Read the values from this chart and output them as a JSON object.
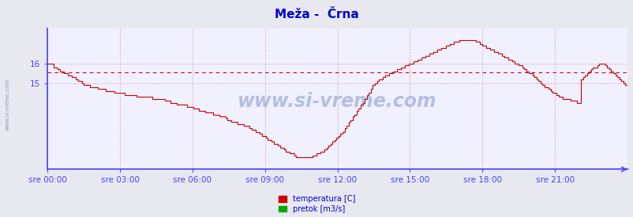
{
  "title": "Meža -  Črna",
  "title_color": "#0000cc",
  "title_fontsize": 11,
  "bg_color": "#e8e8f0",
  "plot_bg_color": "#f0f0ff",
  "x_labels": [
    "sre 00:00",
    "sre 03:00",
    "sre 06:00",
    "sre 09:00",
    "sre 12:00",
    "sre 15:00",
    "sre 18:00",
    "sre 21:00"
  ],
  "x_ticks_norm": [
    0.0,
    0.125,
    0.25,
    0.375,
    0.5,
    0.625,
    0.75,
    0.875
  ],
  "y_ticks": [
    15,
    16
  ],
  "y_min": 10.6,
  "y_max": 17.8,
  "avg_line_y": 15.55,
  "avg_line_color": "#dd0000",
  "grid_color": "#ddaaaa",
  "axis_color": "#4444ff",
  "watermark": "www.si-vreme.com",
  "watermark_color": "#4466aa",
  "watermark_alpha": 0.35,
  "legend_temp_color": "#cc0000",
  "legend_flow_color": "#00aa00",
  "temp_line_color": "#cc0000",
  "n_points": 288,
  "temperatura": [
    16.0,
    16.0,
    16.0,
    15.8,
    15.8,
    15.7,
    15.6,
    15.6,
    15.5,
    15.5,
    15.4,
    15.4,
    15.3,
    15.3,
    15.2,
    15.1,
    15.1,
    15.0,
    14.9,
    14.9,
    14.9,
    14.8,
    14.8,
    14.8,
    14.8,
    14.7,
    14.7,
    14.7,
    14.7,
    14.6,
    14.6,
    14.6,
    14.6,
    14.5,
    14.5,
    14.5,
    14.5,
    14.5,
    14.4,
    14.4,
    14.4,
    14.4,
    14.4,
    14.4,
    14.3,
    14.3,
    14.3,
    14.3,
    14.3,
    14.3,
    14.3,
    14.3,
    14.2,
    14.2,
    14.2,
    14.2,
    14.2,
    14.2,
    14.1,
    14.1,
    14.1,
    14.0,
    14.0,
    14.0,
    13.9,
    13.9,
    13.9,
    13.9,
    13.9,
    13.8,
    13.8,
    13.8,
    13.7,
    13.7,
    13.7,
    13.6,
    13.6,
    13.6,
    13.5,
    13.5,
    13.5,
    13.5,
    13.4,
    13.4,
    13.4,
    13.3,
    13.3,
    13.3,
    13.2,
    13.1,
    13.1,
    13.0,
    13.0,
    13.0,
    12.9,
    12.9,
    12.9,
    12.8,
    12.8,
    12.8,
    12.7,
    12.6,
    12.6,
    12.5,
    12.5,
    12.4,
    12.3,
    12.3,
    12.2,
    12.1,
    12.1,
    12.0,
    11.9,
    11.9,
    11.8,
    11.7,
    11.7,
    11.6,
    11.5,
    11.5,
    11.4,
    11.4,
    11.3,
    11.2,
    11.2,
    11.2,
    11.2,
    11.2,
    11.2,
    11.2,
    11.2,
    11.3,
    11.3,
    11.4,
    11.4,
    11.5,
    11.5,
    11.6,
    11.7,
    11.8,
    11.9,
    12.0,
    12.1,
    12.2,
    12.3,
    12.4,
    12.5,
    12.7,
    12.8,
    13.0,
    13.1,
    13.3,
    13.4,
    13.6,
    13.7,
    13.9,
    14.0,
    14.2,
    14.4,
    14.5,
    14.7,
    14.9,
    15.0,
    15.1,
    15.2,
    15.2,
    15.3,
    15.4,
    15.4,
    15.5,
    15.5,
    15.6,
    15.6,
    15.7,
    15.7,
    15.8,
    15.8,
    15.9,
    15.9,
    16.0,
    16.0,
    16.1,
    16.1,
    16.2,
    16.2,
    16.3,
    16.3,
    16.4,
    16.4,
    16.5,
    16.5,
    16.6,
    16.6,
    16.7,
    16.7,
    16.8,
    16.8,
    16.9,
    16.9,
    17.0,
    17.0,
    17.1,
    17.1,
    17.1,
    17.2,
    17.2,
    17.2,
    17.2,
    17.2,
    17.2,
    17.2,
    17.2,
    17.1,
    17.1,
    17.0,
    16.9,
    16.9,
    16.8,
    16.8,
    16.7,
    16.7,
    16.6,
    16.6,
    16.5,
    16.5,
    16.4,
    16.3,
    16.3,
    16.2,
    16.2,
    16.1,
    16.0,
    16.0,
    15.9,
    15.9,
    15.8,
    15.7,
    15.6,
    15.5,
    15.5,
    15.4,
    15.3,
    15.2,
    15.1,
    15.0,
    14.9,
    14.8,
    14.8,
    14.7,
    14.6,
    14.5,
    14.5,
    14.4,
    14.3,
    14.3,
    14.2,
    14.2,
    14.2,
    14.2,
    14.1,
    14.1,
    14.1,
    14.0,
    14.0,
    15.2,
    15.3,
    15.4,
    15.5,
    15.6,
    15.7,
    15.8,
    15.8,
    15.9,
    16.0,
    16.0,
    16.0,
    15.9,
    15.8,
    15.7,
    15.6,
    15.5,
    15.4,
    15.3,
    15.2,
    15.1,
    15.0,
    14.9,
    14.8
  ]
}
